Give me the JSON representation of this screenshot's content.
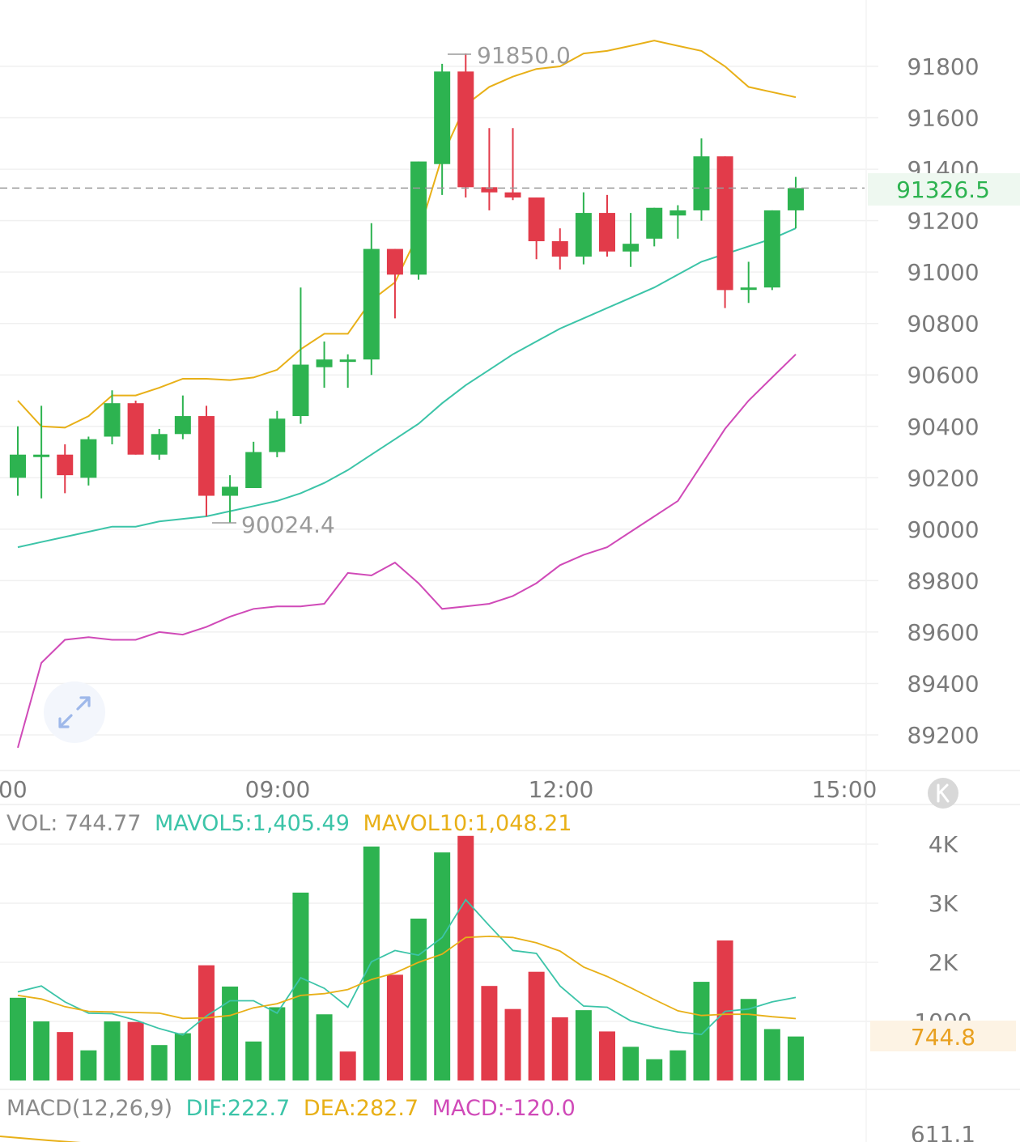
{
  "colors": {
    "up": "#2db350",
    "down": "#e23b4a",
    "ma_teal": "#3cc4a8",
    "ma_yellow": "#e8b018",
    "ma_magenta": "#d04ab8",
    "grid": "#f0f0f0",
    "text": "#7a7a7a",
    "price_tag_bg": "#eef8f0",
    "vol_tag_bg": "#fdf3e4"
  },
  "icons": [
    "expand-icon",
    "k-icon"
  ],
  "chart_data": [
    {
      "type": "candlestick",
      "ylim": [
        89000,
        91930
      ],
      "y_ticks": [
        "91800",
        "91600",
        "91400",
        "91200",
        "91000",
        "90800",
        "90600",
        "90400",
        "90200",
        "90000",
        "89800",
        "89600",
        "89400",
        "89200"
      ],
      "x_ticks": [
        "00",
        "09:00",
        "12:00",
        "15:00"
      ],
      "current_price": 91326.5,
      "current_price_label": "91326.5",
      "max_label": "91850.0",
      "min_label": "90024.4",
      "candles": [
        {
          "o": 90200,
          "h": 90400,
          "l": 90130,
          "c": 90290
        },
        {
          "o": 90290,
          "h": 90480,
          "l": 90120,
          "c": 90290
        },
        {
          "o": 90290,
          "h": 90330,
          "l": 90140,
          "c": 90210
        },
        {
          "o": 90200,
          "h": 90360,
          "l": 90170,
          "c": 90350
        },
        {
          "o": 90360,
          "h": 90540,
          "l": 90330,
          "c": 90490
        },
        {
          "o": 90490,
          "h": 90500,
          "l": 90290,
          "c": 90290
        },
        {
          "o": 90290,
          "h": 90390,
          "l": 90270,
          "c": 90370
        },
        {
          "o": 90370,
          "h": 90520,
          "l": 90350,
          "c": 90440
        },
        {
          "o": 90440,
          "h": 90480,
          "l": 90050,
          "c": 90130
        },
        {
          "o": 90130,
          "h": 90210,
          "l": 90024.4,
          "c": 90165
        },
        {
          "o": 90160,
          "h": 90340,
          "l": 90160,
          "c": 90300
        },
        {
          "o": 90300,
          "h": 90460,
          "l": 90280,
          "c": 90430
        },
        {
          "o": 90440,
          "h": 90940,
          "l": 90410,
          "c": 90640
        },
        {
          "o": 90630,
          "h": 90730,
          "l": 90550,
          "c": 90660
        },
        {
          "o": 90660,
          "h": 90680,
          "l": 90550,
          "c": 90660
        },
        {
          "o": 90660,
          "h": 91190,
          "l": 90600,
          "c": 91090
        },
        {
          "o": 91090,
          "h": 91090,
          "l": 90820,
          "c": 90990
        },
        {
          "o": 90990,
          "h": 91430,
          "l": 90970,
          "c": 91430
        },
        {
          "o": 91420,
          "h": 91810,
          "l": 91300,
          "c": 91780
        },
        {
          "o": 91780,
          "h": 91850,
          "l": 91290,
          "c": 91330
        },
        {
          "o": 91330,
          "h": 91560,
          "l": 91240,
          "c": 91310
        },
        {
          "o": 91310,
          "h": 91560,
          "l": 91280,
          "c": 91290
        },
        {
          "o": 91290,
          "h": 91290,
          "l": 91050,
          "c": 91120
        },
        {
          "o": 91120,
          "h": 91170,
          "l": 91010,
          "c": 91060
        },
        {
          "o": 91060,
          "h": 91310,
          "l": 91030,
          "c": 91230
        },
        {
          "o": 91230,
          "h": 91300,
          "l": 91060,
          "c": 91080
        },
        {
          "o": 91080,
          "h": 91230,
          "l": 91020,
          "c": 91110
        },
        {
          "o": 91130,
          "h": 91250,
          "l": 91100,
          "c": 91250
        },
        {
          "o": 91220,
          "h": 91260,
          "l": 91130,
          "c": 91240
        },
        {
          "o": 91240,
          "h": 91520,
          "l": 91200,
          "c": 91450
        },
        {
          "o": 91450,
          "h": 91450,
          "l": 90860,
          "c": 90930
        },
        {
          "o": 90940,
          "h": 91040,
          "l": 90880,
          "c": 90940
        },
        {
          "o": 90940,
          "h": 91240,
          "l": 90930,
          "c": 91240
        },
        {
          "o": 91240,
          "h": 91370,
          "l": 91170,
          "c": 91326.5
        }
      ],
      "series": [
        {
          "key": "upper",
          "values": [
            90500,
            90400,
            90395,
            90440,
            90520,
            90520,
            90550,
            90585,
            90585,
            90580,
            90590,
            90620,
            90700,
            90760,
            90760,
            90890,
            90960,
            91150,
            91450,
            91650,
            91720,
            91760,
            91790,
            91800,
            91850,
            91860,
            91880,
            91900,
            91880,
            91860,
            91800,
            91720,
            91700,
            91680
          ]
        },
        {
          "key": "middle",
          "values": [
            89930,
            89950,
            89970,
            89990,
            90010,
            90010,
            90030,
            90040,
            90050,
            90070,
            90090,
            90110,
            90140,
            90180,
            90230,
            90290,
            90350,
            90410,
            90490,
            90560,
            90620,
            90680,
            90730,
            90780,
            90820,
            90860,
            90900,
            90940,
            90990,
            91040,
            91070,
            91100,
            91130,
            91170
          ]
        },
        {
          "key": "lower",
          "values": [
            89150,
            89480,
            89570,
            89580,
            89570,
            89570,
            89600,
            89590,
            89620,
            89660,
            89690,
            89700,
            89700,
            89710,
            89830,
            89820,
            89870,
            89790,
            89690,
            89700,
            89710,
            89740,
            89790,
            89860,
            89900,
            89930,
            89990,
            90050,
            90110,
            90250,
            90390,
            90500,
            90590,
            90680
          ]
        }
      ]
    },
    {
      "type": "bar",
      "legend": {
        "vol": "VOL: 744.77",
        "mavol5": "MAVOL5:1,405.49",
        "mavol10": "MAVOL10:1,048.21"
      },
      "ylim": [
        0,
        4000
      ],
      "y_ticks": [
        "4K",
        "3K",
        "2K",
        "1000"
      ],
      "current_label": "744.8",
      "values": [
        1400,
        1000,
        820,
        510,
        1000,
        990,
        600,
        800,
        1950,
        1590,
        660,
        1240,
        3180,
        1120,
        490,
        3960,
        1790,
        2740,
        3860,
        4140,
        1600,
        1210,
        1840,
        1070,
        1190,
        830,
        570,
        360,
        510,
        1670,
        2370,
        1380,
        870,
        744.77
      ],
      "directions": [
        "up",
        "up",
        "down",
        "up",
        "up",
        "down",
        "up",
        "up",
        "down",
        "up",
        "up",
        "up",
        "up",
        "up",
        "down",
        "up",
        "down",
        "up",
        "up",
        "down",
        "down",
        "down",
        "down",
        "down",
        "up",
        "down",
        "up",
        "up",
        "up",
        "up",
        "down",
        "up",
        "up",
        "up"
      ],
      "series": [
        {
          "key": "mavol5",
          "values": [
            1500,
            1600,
            1330,
            1140,
            1130,
            1020,
            880,
            770,
            1090,
            1350,
            1350,
            1140,
            1740,
            1560,
            1240,
            2010,
            2200,
            2120,
            2420,
            3060,
            2620,
            2200,
            2150,
            1600,
            1260,
            1240,
            1010,
            900,
            820,
            780,
            1170,
            1210,
            1330,
            1405.49
          ]
        },
        {
          "key": "mavol10",
          "values": [
            1440,
            1380,
            1250,
            1170,
            1160,
            1150,
            1140,
            1050,
            1060,
            1100,
            1230,
            1300,
            1440,
            1470,
            1540,
            1710,
            1820,
            2000,
            2140,
            2420,
            2440,
            2420,
            2330,
            2190,
            1920,
            1760,
            1570,
            1370,
            1180,
            1100,
            1120,
            1120,
            1080,
            1048.21
          ]
        }
      ]
    },
    {
      "type": "line",
      "legend": {
        "macd": "MACD(12,26,9)",
        "dif": "DIF:222.7",
        "dea": "DEA:282.7",
        "hist": "MACD:-120.0"
      },
      "y_ticks": [
        "611.1"
      ]
    }
  ]
}
